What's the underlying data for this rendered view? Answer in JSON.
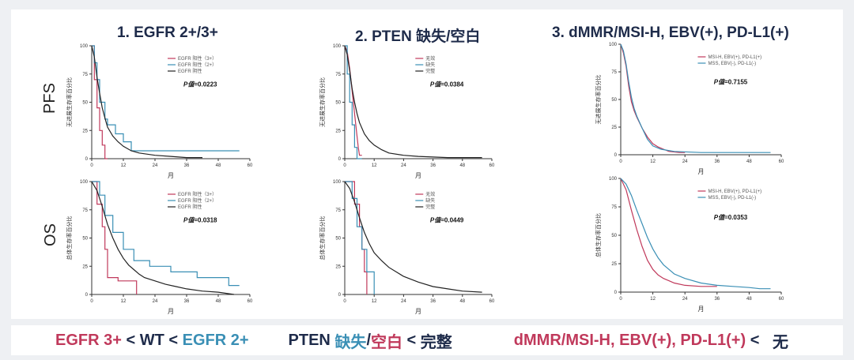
{
  "columns": [
    {
      "title": "1. EGFR 2+/3+"
    },
    {
      "title": "2. PTEN 缺失/空白"
    },
    {
      "title": "3. dMMR/MSI-H, EBV(+), PD-L1(+)"
    }
  ],
  "rows": [
    {
      "label": "PFS"
    },
    {
      "label": "OS"
    }
  ],
  "colors": {
    "red": "#c0395b",
    "teal": "#3a8fb5",
    "black": "#222222",
    "navy": "#1e2b4a"
  },
  "footer": {
    "egfr3": "EGFR 3+",
    "lt1": " < ",
    "wt": "WT",
    "lt2": " < ",
    "egfr2": "EGFR 2+",
    "pten": "PTEN ",
    "loss": "缺失",
    "slash": "/",
    "blank": "空白",
    "lt3": " < ",
    "intact": "完整",
    "dmmr": "dMMR/MSI-H, EBV(+), PD-L1(+)",
    "lt4": " <   ",
    "none": "无"
  },
  "chart_data": [
    {
      "type": "line",
      "title": "",
      "xlabel": "月",
      "ylabel": "无进展生存率百分比",
      "xlim": [
        0,
        60
      ],
      "ylim": [
        0,
        100
      ],
      "xticks": [
        0,
        12,
        24,
        36,
        48,
        60
      ],
      "yticks": [
        0,
        25,
        50,
        75,
        100
      ],
      "legend_position": "top-right",
      "p_label": "P值",
      "p_value": "=0.0223",
      "series": [
        {
          "name": "EGFR 阳性（3+）",
          "color": "red",
          "x": [
            0,
            1,
            1,
            2,
            2,
            3,
            3,
            4,
            4,
            5,
            5,
            6
          ],
          "y": [
            100,
            100,
            70,
            70,
            45,
            45,
            25,
            25,
            12,
            12,
            0,
            0
          ]
        },
        {
          "name": "EGFR 阳性（2+）",
          "color": "teal",
          "x": [
            0,
            1,
            1,
            2,
            2,
            3,
            3,
            5,
            5,
            6,
            6,
            9,
            9,
            12,
            12,
            15,
            15,
            56
          ],
          "y": [
            100,
            100,
            85,
            85,
            70,
            70,
            50,
            50,
            35,
            35,
            30,
            30,
            22,
            22,
            15,
            15,
            7,
            7
          ]
        },
        {
          "name": "EGFR 阴性",
          "color": "black",
          "x": [
            0,
            1,
            2,
            3,
            4,
            5,
            6,
            8,
            10,
            12,
            15,
            18,
            24,
            30,
            36,
            42
          ],
          "y": [
            100,
            90,
            72,
            58,
            45,
            36,
            28,
            20,
            15,
            11,
            7,
            5,
            3,
            2,
            1,
            1
          ]
        }
      ]
    },
    {
      "type": "line",
      "title": "",
      "xlabel": "月",
      "ylabel": "无进展生存率百分比",
      "xlim": [
        0,
        60
      ],
      "ylim": [
        0,
        100
      ],
      "xticks": [
        0,
        12,
        24,
        36,
        48,
        60
      ],
      "yticks": [
        0,
        25,
        50,
        75,
        100
      ],
      "legend_position": "top-right",
      "p_label": "P值",
      "p_value": "=0.0384",
      "series": [
        {
          "name": "无效",
          "color": "red",
          "x": [
            0,
            1,
            2,
            3,
            4,
            5,
            5.5,
            6,
            7
          ],
          "y": [
            100,
            95,
            80,
            60,
            40,
            20,
            10,
            3,
            3
          ]
        },
        {
          "name": "缺失",
          "color": "teal",
          "x": [
            0,
            1,
            1,
            2,
            2,
            3,
            3,
            4,
            4,
            5,
            5,
            7
          ],
          "y": [
            100,
            100,
            75,
            75,
            50,
            50,
            30,
            30,
            10,
            10,
            0,
            0
          ]
        },
        {
          "name": "完整",
          "color": "black",
          "x": [
            0,
            1,
            2,
            3,
            4,
            5,
            6,
            8,
            10,
            12,
            15,
            18,
            24,
            30,
            42,
            56
          ],
          "y": [
            100,
            92,
            78,
            62,
            50,
            40,
            32,
            22,
            16,
            12,
            8,
            5,
            3,
            2,
            1,
            1
          ]
        }
      ]
    },
    {
      "type": "line",
      "title": "",
      "xlabel": "月",
      "ylabel": "无进展生存率百分比",
      "xlim": [
        0,
        60
      ],
      "ylim": [
        0,
        100
      ],
      "xticks": [
        0,
        12,
        24,
        36,
        48,
        60
      ],
      "yticks": [
        0,
        25,
        50,
        75,
        100
      ],
      "legend_position": "top-right",
      "p_label": "P值",
      "p_value": "=0.7155",
      "series": [
        {
          "name": "MSI-H, EBV(+), PD-L1(+)",
          "color": "red",
          "x": [
            0,
            1,
            2,
            3,
            4,
            5,
            6,
            8,
            10,
            12,
            14,
            16,
            18,
            22,
            24
          ],
          "y": [
            100,
            92,
            80,
            62,
            48,
            40,
            34,
            24,
            16,
            10,
            7,
            5,
            3,
            2,
            2
          ]
        },
        {
          "name": "MSS, EBV(-), PD-L1(-)",
          "color": "teal",
          "x": [
            0,
            1,
            2,
            3,
            4,
            5,
            6,
            8,
            10,
            12,
            15,
            20,
            30,
            40,
            56
          ],
          "y": [
            100,
            94,
            82,
            66,
            52,
            42,
            35,
            24,
            14,
            8,
            5,
            3,
            2,
            2,
            2
          ]
        }
      ]
    },
    {
      "type": "line",
      "title": "",
      "xlabel": "月",
      "ylabel": "总体生存率百分比",
      "xlim": [
        0,
        60
      ],
      "ylim": [
        0,
        100
      ],
      "xticks": [
        0,
        12,
        24,
        36,
        48,
        60
      ],
      "yticks": [
        0,
        25,
        50,
        75,
        100
      ],
      "legend_position": "top-right",
      "p_label": "P值",
      "p_value": "=0.0318",
      "series": [
        {
          "name": "EGFR 阳性（3+）",
          "color": "red",
          "x": [
            0,
            2,
            2,
            4,
            4,
            5,
            5,
            6,
            6,
            10,
            10,
            17,
            17
          ],
          "y": [
            100,
            100,
            80,
            80,
            60,
            60,
            40,
            40,
            15,
            15,
            12,
            12,
            0
          ]
        },
        {
          "name": "EGFR 阳性（2+）",
          "color": "teal",
          "x": [
            0,
            3,
            3,
            5,
            5,
            8,
            8,
            12,
            12,
            16,
            16,
            22,
            22,
            30,
            30,
            40,
            40,
            52,
            52,
            56
          ],
          "y": [
            100,
            100,
            88,
            88,
            70,
            70,
            55,
            55,
            40,
            40,
            30,
            30,
            25,
            25,
            20,
            20,
            15,
            15,
            8,
            8
          ]
        },
        {
          "name": "EGFR 阴性",
          "color": "black",
          "x": [
            0,
            2,
            4,
            6,
            8,
            10,
            12,
            14,
            16,
            18,
            20,
            24,
            28,
            32,
            36,
            42,
            48,
            54
          ],
          "y": [
            100,
            92,
            78,
            62,
            50,
            40,
            32,
            26,
            22,
            18,
            15,
            12,
            9,
            7,
            5,
            3,
            2,
            0
          ]
        }
      ]
    },
    {
      "type": "line",
      "title": "",
      "xlabel": "月",
      "ylabel": "总体生存率百分比",
      "xlim": [
        0,
        60
      ],
      "ylim": [
        0,
        100
      ],
      "xticks": [
        0,
        12,
        24,
        36,
        48,
        60
      ],
      "yticks": [
        0,
        25,
        50,
        75,
        100
      ],
      "legend_position": "top-right",
      "p_label": "P值",
      "p_value": "=0.0449",
      "series": [
        {
          "name": "无效",
          "color": "red",
          "x": [
            0,
            4,
            4,
            6,
            6,
            7,
            7,
            8,
            8,
            9,
            9
          ],
          "y": [
            100,
            100,
            80,
            80,
            60,
            60,
            40,
            40,
            20,
            20,
            0
          ]
        },
        {
          "name": "缺失",
          "color": "teal",
          "x": [
            0,
            3,
            3,
            5,
            5,
            7,
            7,
            9,
            9,
            12,
            12
          ],
          "y": [
            100,
            100,
            85,
            85,
            60,
            60,
            40,
            40,
            20,
            20,
            0
          ]
        },
        {
          "name": "完整",
          "color": "black",
          "x": [
            0,
            2,
            4,
            6,
            8,
            10,
            12,
            15,
            18,
            21,
            24,
            30,
            36,
            42,
            48,
            56
          ],
          "y": [
            100,
            94,
            82,
            68,
            55,
            45,
            37,
            30,
            24,
            20,
            16,
            11,
            7,
            5,
            3,
            2
          ]
        }
      ]
    },
    {
      "type": "line",
      "title": "",
      "xlabel": "月",
      "ylabel": "总体生存率百分比",
      "xlim": [
        0,
        60
      ],
      "ylim": [
        0,
        100
      ],
      "xticks": [
        0,
        12,
        24,
        36,
        48,
        60
      ],
      "yticks": [
        0,
        25,
        50,
        75,
        100
      ],
      "legend_position": "top-right",
      "p_label": "P值",
      "p_value": "=0.0353",
      "series": [
        {
          "name": "MSI-H, EBV(+), PD-L1(+)",
          "color": "red",
          "x": [
            0,
            2,
            4,
            6,
            8,
            10,
            12,
            14,
            16,
            18,
            20,
            24,
            30,
            36
          ],
          "y": [
            100,
            90,
            72,
            55,
            40,
            28,
            20,
            15,
            12,
            10,
            8,
            6,
            5,
            5
          ]
        },
        {
          "name": "MSS, EBV(-), PD-L1(-)",
          "color": "teal",
          "x": [
            0,
            2,
            4,
            6,
            8,
            10,
            12,
            14,
            16,
            18,
            20,
            24,
            30,
            36,
            42,
            48,
            52,
            56
          ],
          "y": [
            100,
            95,
            85,
            72,
            60,
            48,
            38,
            30,
            24,
            20,
            16,
            12,
            8,
            6,
            5,
            4,
            3,
            3
          ]
        }
      ]
    }
  ]
}
